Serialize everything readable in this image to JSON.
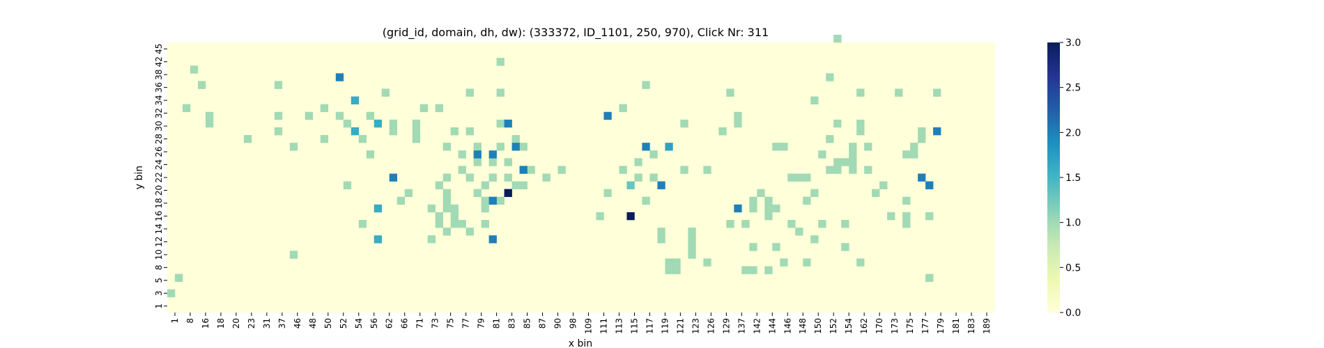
{
  "chart_data": {
    "type": "heatmap",
    "title": "(grid_id, domain, dh, dw): (333372, ID_1101, 250, 970), Click Nr: 311",
    "xlabel": "x bin",
    "ylabel": "y bin",
    "x_tick_labels": [
      "1",
      "8",
      "16",
      "18",
      "20",
      "23",
      "31",
      "37",
      "46",
      "48",
      "50",
      "52",
      "54",
      "56",
      "62",
      "66",
      "71",
      "73",
      "75",
      "77",
      "79",
      "81",
      "83",
      "85",
      "87",
      "90",
      "98",
      "109",
      "111",
      "113",
      "115",
      "117",
      "119",
      "121",
      "123",
      "126",
      "129",
      "137",
      "142",
      "144",
      "146",
      "148",
      "150",
      "152",
      "154",
      "162",
      "170",
      "173",
      "175",
      "177",
      "179",
      "181",
      "183",
      "189"
    ],
    "y_tick_labels": [
      "1",
      "3",
      "5",
      "8",
      "10",
      "12",
      "14",
      "16",
      "18",
      "20",
      "22",
      "24",
      "26",
      "28",
      "30",
      "32",
      "34",
      "36",
      "38",
      "42",
      "45"
    ],
    "n_cols": 108,
    "n_rows": 35,
    "colormap": "YlGnBu",
    "vmin": 0,
    "vmax": 3,
    "colorbar_ticks": [
      "0.0",
      "0.5",
      "1.0",
      "1.5",
      "2.0",
      "2.5",
      "3.0"
    ],
    "background_value": 0,
    "cells": [
      [
        0,
        2,
        1
      ],
      [
        1,
        4,
        1
      ],
      [
        2,
        26,
        1
      ],
      [
        3,
        31,
        1
      ],
      [
        4,
        29,
        1
      ],
      [
        5,
        24,
        1
      ],
      [
        5,
        25,
        1
      ],
      [
        10,
        22,
        1
      ],
      [
        14,
        23,
        1
      ],
      [
        14,
        25,
        1
      ],
      [
        14,
        29,
        1
      ],
      [
        16,
        7,
        1
      ],
      [
        16,
        21,
        1
      ],
      [
        18,
        25,
        1
      ],
      [
        20,
        22,
        1
      ],
      [
        20,
        26,
        1
      ],
      [
        22,
        25,
        1
      ],
      [
        23,
        16,
        1
      ],
      [
        23,
        24,
        1
      ],
      [
        25,
        11,
        1
      ],
      [
        25,
        22,
        1
      ],
      [
        26,
        20,
        1
      ],
      [
        26,
        25,
        1
      ],
      [
        28,
        28,
        1
      ],
      [
        29,
        23,
        1
      ],
      [
        29,
        24,
        1
      ],
      [
        30,
        14,
        1
      ],
      [
        31,
        15,
        1
      ],
      [
        32,
        22,
        1
      ],
      [
        32,
        23,
        1
      ],
      [
        32,
        24,
        1
      ],
      [
        33,
        26,
        1
      ],
      [
        34,
        9,
        1
      ],
      [
        34,
        13,
        1
      ],
      [
        35,
        11,
        1
      ],
      [
        35,
        12,
        1
      ],
      [
        35,
        16,
        1
      ],
      [
        35,
        26,
        1
      ],
      [
        36,
        10,
        1
      ],
      [
        36,
        13,
        1
      ],
      [
        36,
        14,
        1
      ],
      [
        36,
        15,
        1
      ],
      [
        36,
        17,
        1
      ],
      [
        36,
        21,
        1
      ],
      [
        37,
        11,
        1
      ],
      [
        37,
        12,
        1
      ],
      [
        37,
        13,
        1
      ],
      [
        37,
        23,
        1
      ],
      [
        38,
        11,
        1
      ],
      [
        38,
        18,
        1
      ],
      [
        38,
        20,
        1
      ],
      [
        39,
        10,
        1
      ],
      [
        39,
        17,
        1
      ],
      [
        39,
        23,
        1
      ],
      [
        39,
        28,
        1
      ],
      [
        40,
        15,
        1
      ],
      [
        40,
        19,
        1
      ],
      [
        40,
        21,
        1
      ],
      [
        41,
        11,
        1
      ],
      [
        41,
        13,
        1
      ],
      [
        41,
        14,
        1
      ],
      [
        41,
        16,
        1
      ],
      [
        42,
        17,
        1
      ],
      [
        42,
        19,
        1
      ],
      [
        43,
        14,
        1
      ],
      [
        43,
        21,
        1
      ],
      [
        43,
        24,
        1
      ],
      [
        43,
        28,
        1
      ],
      [
        43,
        32,
        1
      ],
      [
        44,
        15,
        1
      ],
      [
        44,
        17,
        1
      ],
      [
        44,
        19,
        1
      ],
      [
        45,
        16,
        1
      ],
      [
        45,
        22,
        1
      ],
      [
        46,
        16,
        1
      ],
      [
        46,
        21,
        1
      ],
      [
        47,
        18,
        1
      ],
      [
        49,
        17,
        1
      ],
      [
        51,
        18,
        1
      ],
      [
        56,
        12,
        1
      ],
      [
        57,
        15,
        1
      ],
      [
        59,
        18,
        1
      ],
      [
        59,
        26,
        1
      ],
      [
        61,
        17,
        1
      ],
      [
        61,
        19,
        1
      ],
      [
        62,
        29,
        1
      ],
      [
        62,
        14,
        1
      ],
      [
        63,
        17,
        1
      ],
      [
        63,
        20,
        1
      ],
      [
        64,
        9,
        1
      ],
      [
        64,
        10,
        1
      ],
      [
        65,
        5,
        1
      ],
      [
        65,
        6,
        1
      ],
      [
        66,
        5,
        1
      ],
      [
        66,
        6,
        1
      ],
      [
        67,
        18,
        1
      ],
      [
        67,
        24,
        1
      ],
      [
        68,
        7,
        1
      ],
      [
        68,
        8,
        1
      ],
      [
        68,
        9,
        1
      ],
      [
        68,
        10,
        1
      ],
      [
        70,
        6,
        1
      ],
      [
        70,
        18,
        1
      ],
      [
        72,
        23,
        1
      ],
      [
        73,
        11,
        1
      ],
      [
        73,
        28,
        1
      ],
      [
        74,
        24,
        1
      ],
      [
        74,
        25,
        1
      ],
      [
        75,
        5,
        1
      ],
      [
        75,
        11,
        1
      ],
      [
        76,
        5,
        1
      ],
      [
        76,
        8,
        1
      ],
      [
        76,
        13,
        1
      ],
      [
        76,
        14,
        1
      ],
      [
        77,
        15,
        1
      ],
      [
        78,
        5,
        1
      ],
      [
        78,
        12,
        1
      ],
      [
        78,
        13,
        1
      ],
      [
        78,
        14,
        1
      ],
      [
        79,
        21,
        1
      ],
      [
        79,
        13,
        1
      ],
      [
        79,
        8,
        1
      ],
      [
        80,
        6,
        1
      ],
      [
        80,
        21,
        1
      ],
      [
        81,
        11,
        1
      ],
      [
        81,
        17,
        1
      ],
      [
        82,
        17,
        1
      ],
      [
        82,
        10,
        1
      ],
      [
        83,
        17,
        1
      ],
      [
        83,
        6,
        1
      ],
      [
        83,
        14,
        1
      ],
      [
        84,
        9,
        1
      ],
      [
        84,
        15,
        1
      ],
      [
        84,
        27,
        1
      ],
      [
        85,
        11,
        1
      ],
      [
        85,
        20,
        1
      ],
      [
        86,
        18,
        1
      ],
      [
        86,
        22,
        1
      ],
      [
        86,
        30,
        1
      ],
      [
        87,
        18,
        1
      ],
      [
        87,
        19,
        1
      ],
      [
        87,
        24,
        1
      ],
      [
        87,
        35,
        1
      ],
      [
        88,
        8,
        1
      ],
      [
        88,
        19,
        1
      ],
      [
        88,
        11,
        1
      ],
      [
        89,
        18,
        1
      ],
      [
        89,
        19,
        1
      ],
      [
        89,
        20,
        1
      ],
      [
        89,
        21,
        1
      ],
      [
        90,
        6,
        1
      ],
      [
        90,
        23,
        1
      ],
      [
        90,
        24,
        1
      ],
      [
        90,
        28,
        1
      ],
      [
        91,
        18,
        1
      ],
      [
        91,
        21,
        1
      ],
      [
        92,
        15,
        1
      ],
      [
        93,
        16,
        1
      ],
      [
        94,
        12,
        1
      ],
      [
        95,
        28,
        1
      ],
      [
        96,
        11,
        1
      ],
      [
        96,
        12,
        1
      ],
      [
        96,
        14,
        1
      ],
      [
        96,
        20,
        1
      ],
      [
        97,
        20,
        1
      ],
      [
        97,
        21,
        1
      ],
      [
        98,
        22,
        1
      ],
      [
        98,
        23,
        1
      ],
      [
        99,
        4,
        1
      ],
      [
        99,
        12,
        1
      ],
      [
        99,
        16,
        1
      ],
      [
        100,
        28,
        1
      ]
    ]
  },
  "high_cells": [
    [
      22,
      30,
      2
    ],
    [
      42,
      14,
      2
    ],
    [
      40,
      20,
      2
    ],
    [
      42,
      9,
      2
    ],
    [
      45,
      21,
      2
    ],
    [
      46,
      18,
      2
    ],
    [
      57,
      25,
      2
    ],
    [
      64,
      16,
      2
    ],
    [
      74,
      13,
      2
    ],
    [
      42,
      20,
      2
    ],
    [
      44,
      24,
      2
    ],
    [
      98,
      17,
      2
    ],
    [
      99,
      16,
      2
    ],
    [
      100,
      23,
      2
    ],
    [
      24,
      23,
      1.6
    ],
    [
      24,
      27,
      1.6
    ],
    [
      27,
      24,
      1.6
    ],
    [
      27,
      13,
      1.6
    ],
    [
      27,
      9,
      1.6
    ],
    [
      29,
      17,
      2
    ],
    [
      60,
      16,
      1.3
    ],
    [
      62,
      21,
      2
    ],
    [
      65,
      21,
      1.7
    ]
  ],
  "peak_cells": [
    [
      44,
      15,
      3
    ],
    [
      60,
      12,
      3
    ]
  ]
}
